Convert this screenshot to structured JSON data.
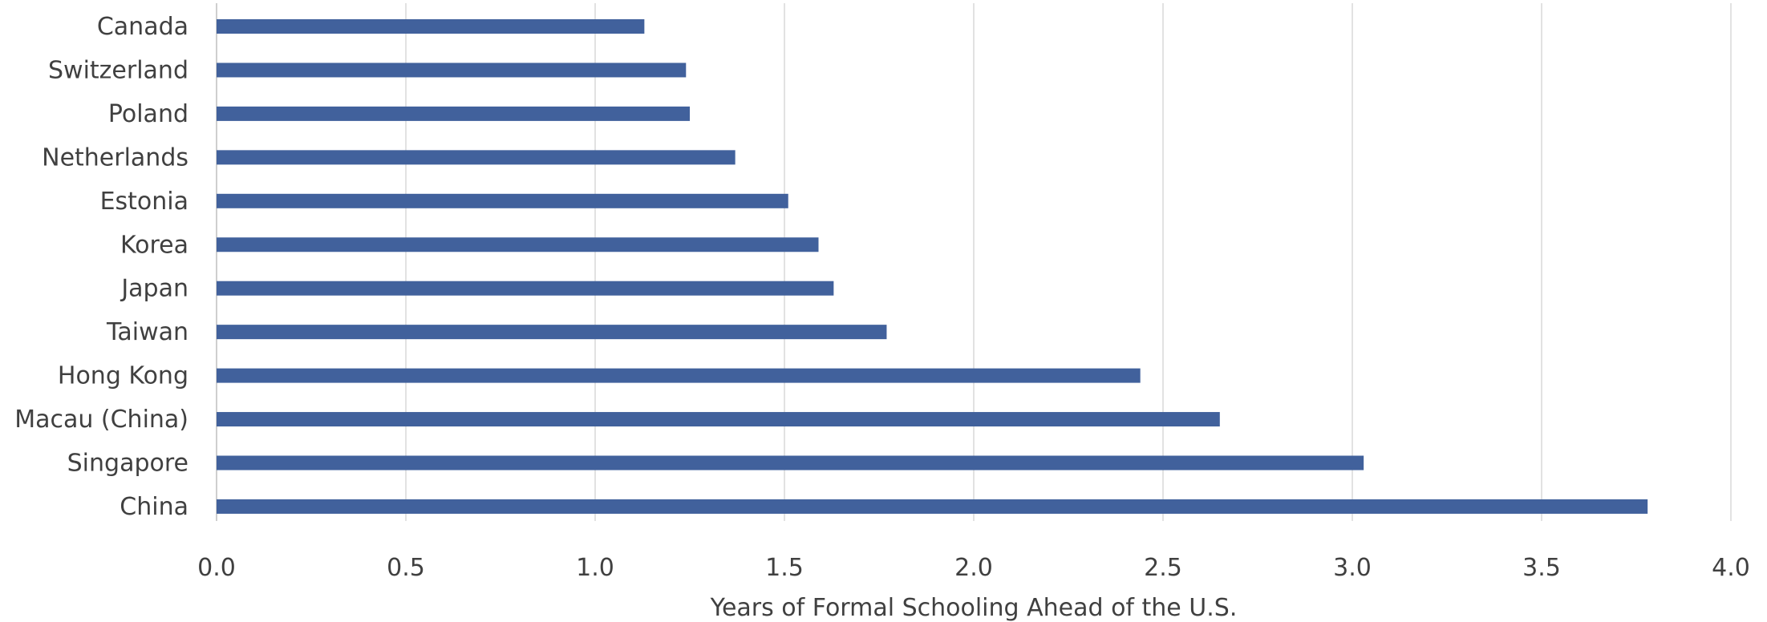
{
  "chart_data": {
    "type": "bar",
    "orientation": "horizontal",
    "title": "",
    "xlabel": "Years of Formal Schooling Ahead of the U.S.",
    "ylabel": "",
    "categories": [
      "Canada",
      "Switzerland",
      "Poland",
      "Netherlands",
      "Estonia",
      "Korea",
      "Japan",
      "Taiwan",
      "Hong Kong",
      "Macau (China)",
      "Singapore",
      "China"
    ],
    "values": [
      1.13,
      1.24,
      1.25,
      1.37,
      1.51,
      1.59,
      1.63,
      1.77,
      2.44,
      2.65,
      3.03,
      3.78
    ],
    "xlim": [
      0,
      4
    ],
    "ticks": [
      "0.0",
      "0.5",
      "1.0",
      "1.5",
      "2.0",
      "2.5",
      "3.0",
      "3.5",
      "4.0"
    ],
    "grid": true,
    "legend": "none",
    "bar_color": "#41619c"
  }
}
